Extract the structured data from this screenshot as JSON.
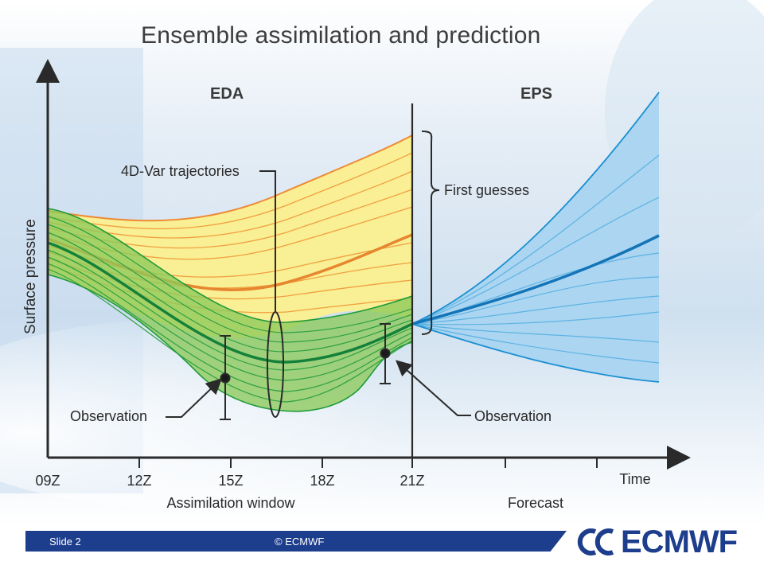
{
  "slide": {
    "title": "Ensemble assimilation and prediction",
    "footer": {
      "slide_number": "Slide 2",
      "copyright": "© ECMWF"
    },
    "logo": {
      "text": "ECMWF"
    }
  },
  "diagram": {
    "section_left": "EDA",
    "section_right": "EPS",
    "y_axis_label": "Surface pressure",
    "x_ticks": [
      "09Z",
      "12Z",
      "15Z",
      "18Z",
      "21Z"
    ],
    "x_axis_end_label": "Time",
    "x_group_left": "Assimilation window",
    "x_group_right": "Forecast",
    "annotations": {
      "trajectories": "4D-Var trajectories",
      "first_guesses": "First guesses",
      "observation_left": "Observation",
      "observation_right": "Observation"
    },
    "colors": {
      "eda_fill": "#fbef8e",
      "eda_line": "#f0963a",
      "analysis_fill": "#9fd468",
      "analysis_line": "#1f9a3a",
      "eps_fill": "#a9d4f0",
      "eps_line": "#1a8fd1",
      "axis": "#2a2a2a"
    }
  }
}
